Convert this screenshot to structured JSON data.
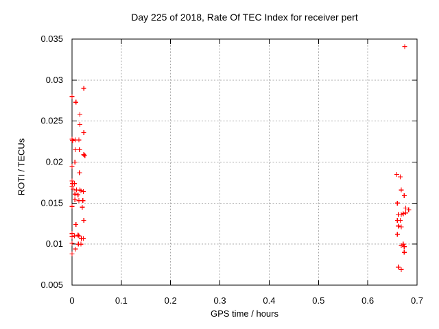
{
  "chart_data": {
    "type": "scatter",
    "title": "Day 225 of 2018, Rate Of TEC Index for receiver pert",
    "xlabel": "GPS time / hours",
    "ylabel": "ROTI / TECUs",
    "xlim": [
      0,
      0.7
    ],
    "ylim": [
      0.005,
      0.035
    ],
    "xticks": [
      "0",
      "0.1",
      "0.2",
      "0.3",
      "0.4",
      "0.5",
      "0.6",
      "0.7"
    ],
    "yticks": [
      "0.005",
      "0.01",
      "0.015",
      "0.02",
      "0.025",
      "0.03",
      "0.035"
    ],
    "grid": true,
    "legend": "none",
    "marker": {
      "shape": "plus",
      "color": "#ff0000"
    },
    "frame_color": "#000000",
    "grid_color": "#a8a8a8",
    "points": [
      [
        0.024,
        0.029
      ],
      [
        0.0,
        0.028
      ],
      [
        0.008,
        0.0273
      ],
      [
        0.016,
        0.0258
      ],
      [
        0.016,
        0.0246
      ],
      [
        0.024,
        0.0236
      ],
      [
        0.0,
        0.0228
      ],
      [
        0.001,
        0.0226
      ],
      [
        0.007,
        0.0227
      ],
      [
        0.014,
        0.0227
      ],
      [
        0.007,
        0.0215
      ],
      [
        0.015,
        0.0215
      ],
      [
        0.024,
        0.0209
      ],
      [
        0.026,
        0.0208
      ],
      [
        0.006,
        0.02
      ],
      [
        0.0,
        0.0195
      ],
      [
        0.015,
        0.0187
      ],
      [
        0.0,
        0.0177
      ],
      [
        0.001,
        0.0174
      ],
      [
        0.005,
        0.0174
      ],
      [
        0.0,
        0.017
      ],
      [
        0.002,
        0.0167
      ],
      [
        0.009,
        0.0166
      ],
      [
        0.016,
        0.0166
      ],
      [
        0.018,
        0.0165
      ],
      [
        0.023,
        0.0164
      ],
      [
        0.006,
        0.0161
      ],
      [
        0.012,
        0.016
      ],
      [
        0.006,
        0.0154
      ],
      [
        0.014,
        0.0153
      ],
      [
        0.022,
        0.0153
      ],
      [
        0.0,
        0.0146
      ],
      [
        0.021,
        0.0145
      ],
      [
        0.024,
        0.0129
      ],
      [
        0.008,
        0.0124
      ],
      [
        0.0,
        0.0113
      ],
      [
        0.0,
        0.0109
      ],
      [
        0.005,
        0.011
      ],
      [
        0.012,
        0.0111
      ],
      [
        0.014,
        0.011
      ],
      [
        0.019,
        0.0107
      ],
      [
        0.023,
        0.0107
      ],
      [
        0.0,
        0.0101
      ],
      [
        0.013,
        0.01
      ],
      [
        0.018,
        0.01
      ],
      [
        0.007,
        0.0094
      ],
      [
        0.0,
        0.0088
      ],
      [
        0.675,
        0.0341
      ],
      [
        0.659,
        0.0185
      ],
      [
        0.666,
        0.0182
      ],
      [
        0.668,
        0.0166
      ],
      [
        0.674,
        0.0159
      ],
      [
        0.66,
        0.015
      ],
      [
        0.677,
        0.0144
      ],
      [
        0.683,
        0.0142
      ],
      [
        0.662,
        0.0136
      ],
      [
        0.668,
        0.0136
      ],
      [
        0.672,
        0.0137
      ],
      [
        0.677,
        0.0138
      ],
      [
        0.66,
        0.0129
      ],
      [
        0.666,
        0.0129
      ],
      [
        0.662,
        0.0122
      ],
      [
        0.668,
        0.0121
      ],
      [
        0.66,
        0.0112
      ],
      [
        0.672,
        0.01
      ],
      [
        0.668,
        0.0098
      ],
      [
        0.674,
        0.0097
      ],
      [
        0.674,
        0.009
      ],
      [
        0.662,
        0.0072
      ],
      [
        0.668,
        0.0069
      ]
    ]
  }
}
